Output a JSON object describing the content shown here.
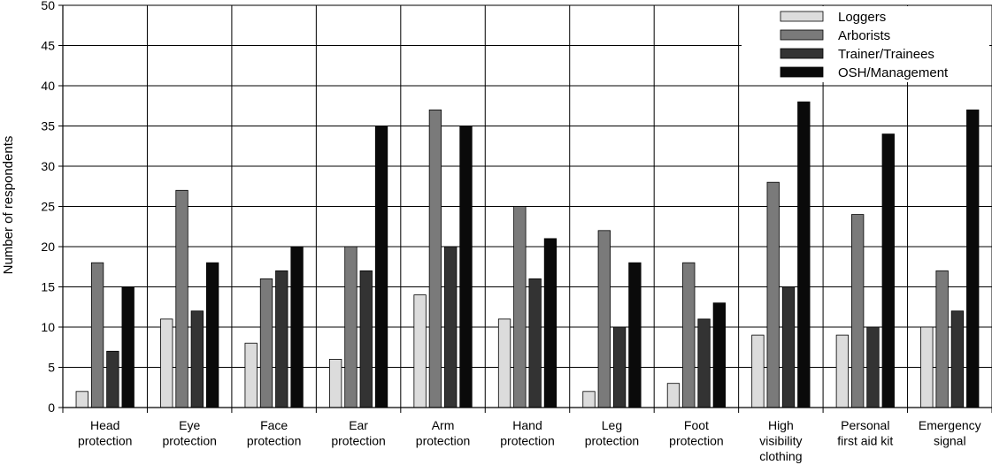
{
  "chart_data": {
    "type": "bar",
    "title": "",
    "xlabel": "",
    "ylabel": "Number of respondents",
    "ylim": [
      0,
      50
    ],
    "yticks": [
      0,
      5,
      10,
      15,
      20,
      25,
      30,
      35,
      40,
      45,
      50
    ],
    "grid": true,
    "legend_position": "top-right",
    "categories": [
      [
        "Head",
        "protection"
      ],
      [
        "Eye",
        "protection"
      ],
      [
        "Face",
        "protection"
      ],
      [
        "Ear",
        "protection"
      ],
      [
        "Arm",
        "protection"
      ],
      [
        "Hand",
        "protection"
      ],
      [
        "Leg",
        "protection"
      ],
      [
        "Foot",
        "protection"
      ],
      [
        "High",
        "visibility",
        "clothing"
      ],
      [
        "Personal",
        "first aid kit"
      ],
      [
        "Emergency",
        "signal"
      ]
    ],
    "series": [
      {
        "name": "Loggers",
        "color": "#dcdcdc",
        "values": [
          2,
          11,
          8,
          6,
          14,
          11,
          2,
          3,
          9,
          9,
          10
        ]
      },
      {
        "name": "Arborists",
        "color": "#7a7a7a",
        "values": [
          18,
          27,
          16,
          20,
          37,
          25,
          22,
          18,
          28,
          24,
          17
        ]
      },
      {
        "name": "Trainer/Trainees",
        "color": "#333333",
        "values": [
          7,
          12,
          17,
          17,
          20,
          16,
          10,
          11,
          15,
          10,
          12
        ]
      },
      {
        "name": "OSH/Management",
        "color": "#0a0a0a",
        "values": [
          15,
          18,
          20,
          35,
          35,
          21,
          18,
          13,
          38,
          34,
          37
        ]
      }
    ]
  }
}
